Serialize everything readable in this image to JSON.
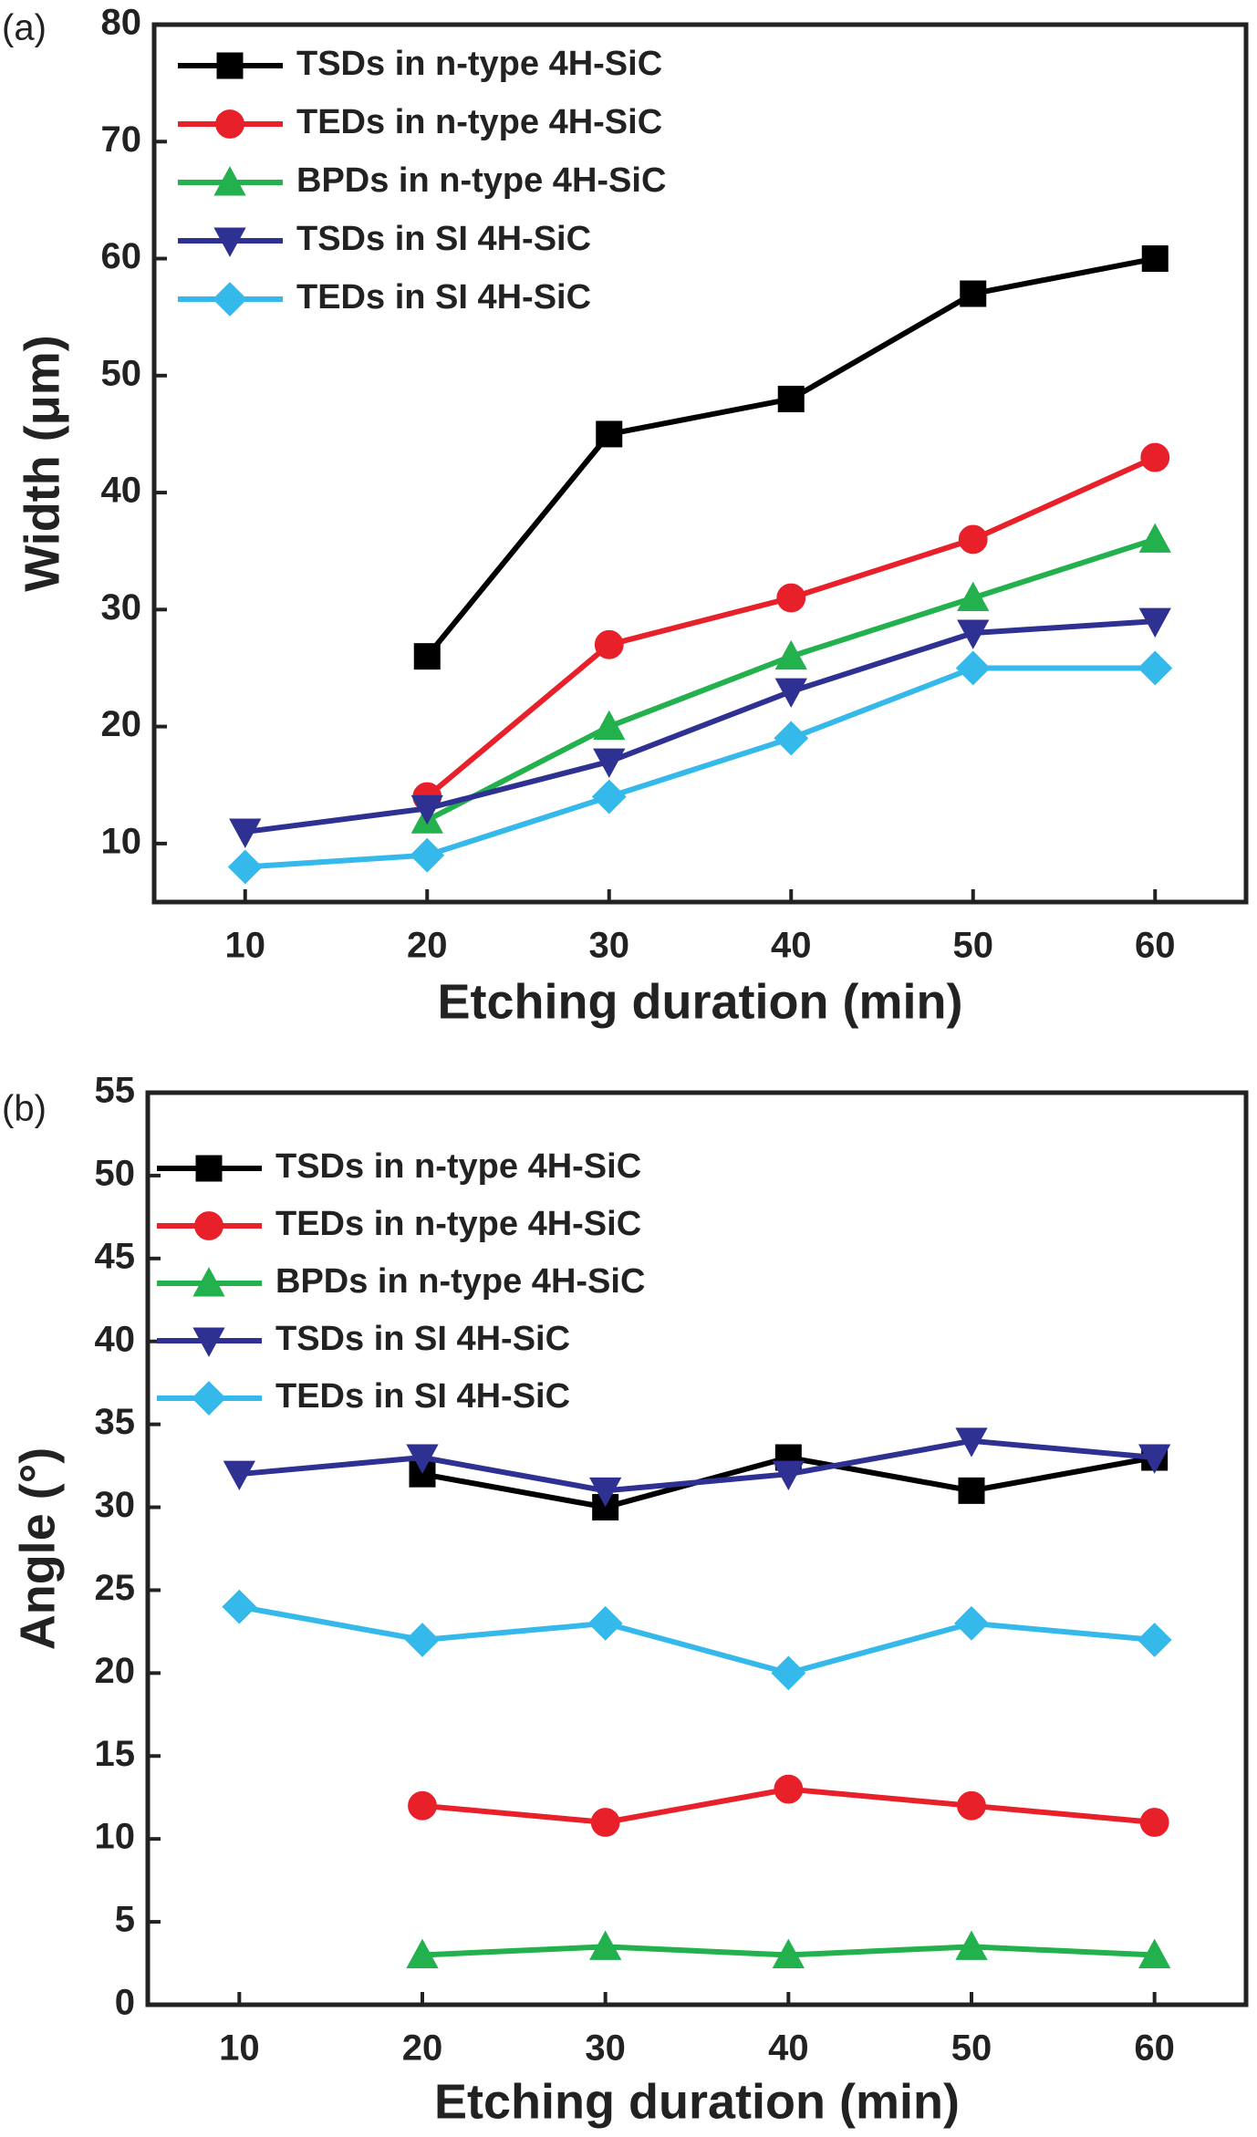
{
  "chart_data": [
    {
      "type": "line",
      "panel_label": "(a)",
      "x_label": "Etching duration (min)",
      "y_label": "Width (μm)",
      "x": [
        10,
        20,
        30,
        40,
        50,
        60
      ],
      "xlim": [
        5,
        65
      ],
      "xticks": [
        10,
        20,
        30,
        40,
        50,
        60
      ],
      "ylim": [
        5,
        80
      ],
      "yticks": [
        10,
        20,
        30,
        40,
        50,
        60,
        70,
        80
      ],
      "legend": "upper-left",
      "series": [
        {
          "name": "TSDs in n-type 4H-SiC",
          "color": "#000000",
          "marker": "square",
          "values": [
            null,
            26,
            45,
            48,
            57,
            60
          ]
        },
        {
          "name": "TEDs in n-type 4H-SiC",
          "color": "#e8202a",
          "marker": "circle",
          "values": [
            null,
            14,
            27,
            31,
            36,
            43
          ]
        },
        {
          "name": "BPDs in n-type 4H-SiC",
          "color": "#22b14c",
          "marker": "triangle-up",
          "values": [
            null,
            12,
            20,
            26,
            31,
            36
          ]
        },
        {
          "name": "TSDs in SI 4H-SiC",
          "color": "#2e3192",
          "marker": "triangle-down",
          "values": [
            11,
            13,
            17,
            23,
            28,
            29
          ]
        },
        {
          "name": "TEDs in SI 4H-SiC",
          "color": "#35b8ea",
          "marker": "diamond",
          "values": [
            8,
            9,
            14,
            19,
            25,
            25
          ]
        }
      ]
    },
    {
      "type": "line",
      "panel_label": "(b)",
      "x_label": "Etching duration (min)",
      "y_label": "Angle (°)",
      "x": [
        10,
        20,
        30,
        40,
        50,
        60
      ],
      "xlim": [
        5,
        65
      ],
      "xticks": [
        10,
        20,
        30,
        40,
        50,
        60
      ],
      "ylim": [
        0,
        55
      ],
      "yticks": [
        0,
        5,
        10,
        15,
        20,
        25,
        30,
        35,
        40,
        45,
        50,
        55
      ],
      "legend": "upper-left",
      "series": [
        {
          "name": "TSDs in n-type 4H-SiC",
          "color": "#000000",
          "marker": "square",
          "values": [
            null,
            32,
            30,
            33,
            31,
            33
          ]
        },
        {
          "name": "TEDs in n-type 4H-SiC",
          "color": "#e8202a",
          "marker": "circle",
          "values": [
            null,
            12,
            11,
            13,
            12,
            11
          ]
        },
        {
          "name": "BPDs in n-type 4H-SiC",
          "color": "#22b14c",
          "marker": "triangle-up",
          "values": [
            null,
            3,
            3.5,
            3,
            3.5,
            3
          ]
        },
        {
          "name": "TSDs in SI 4H-SiC",
          "color": "#2e3192",
          "marker": "triangle-down",
          "values": [
            32,
            33,
            31,
            32,
            34,
            33
          ]
        },
        {
          "name": "TEDs in SI 4H-SiC",
          "color": "#35b8ea",
          "marker": "diamond",
          "values": [
            24,
            22,
            23,
            20,
            23,
            22
          ]
        }
      ]
    }
  ]
}
